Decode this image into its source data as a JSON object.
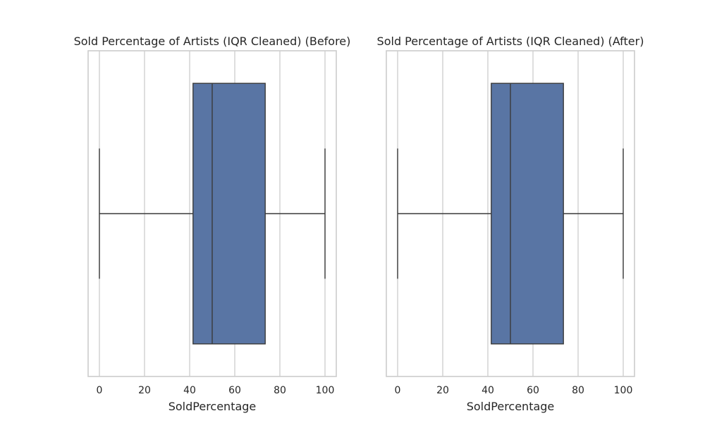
{
  "chart_data": [
    {
      "type": "box",
      "title": "Sold Percentage of Artists (IQR Cleaned) (Before)",
      "xlabel": "SoldPercentage",
      "ylabel": "",
      "xlim": [
        -5,
        105
      ],
      "ticks": [
        0,
        20,
        40,
        60,
        80,
        100
      ],
      "tick_labels": [
        "0",
        "20",
        "40",
        "60",
        "80",
        "100"
      ],
      "grid": true,
      "box": {
        "whisker_low": 0,
        "q1": 41.5,
        "median": 50,
        "q3": 73.5,
        "whisker_high": 100
      },
      "color": "#5975a4"
    },
    {
      "type": "box",
      "title": "Sold Percentage of Artists (IQR Cleaned) (After)",
      "xlabel": "SoldPercentage",
      "ylabel": "",
      "xlim": [
        -5,
        105
      ],
      "ticks": [
        0,
        20,
        40,
        60,
        80,
        100
      ],
      "tick_labels": [
        "0",
        "20",
        "40",
        "60",
        "80",
        "100"
      ],
      "grid": true,
      "box": {
        "whisker_low": 0,
        "q1": 41.5,
        "median": 50,
        "q3": 73.5,
        "whisker_high": 100
      },
      "color": "#5975a4"
    }
  ]
}
